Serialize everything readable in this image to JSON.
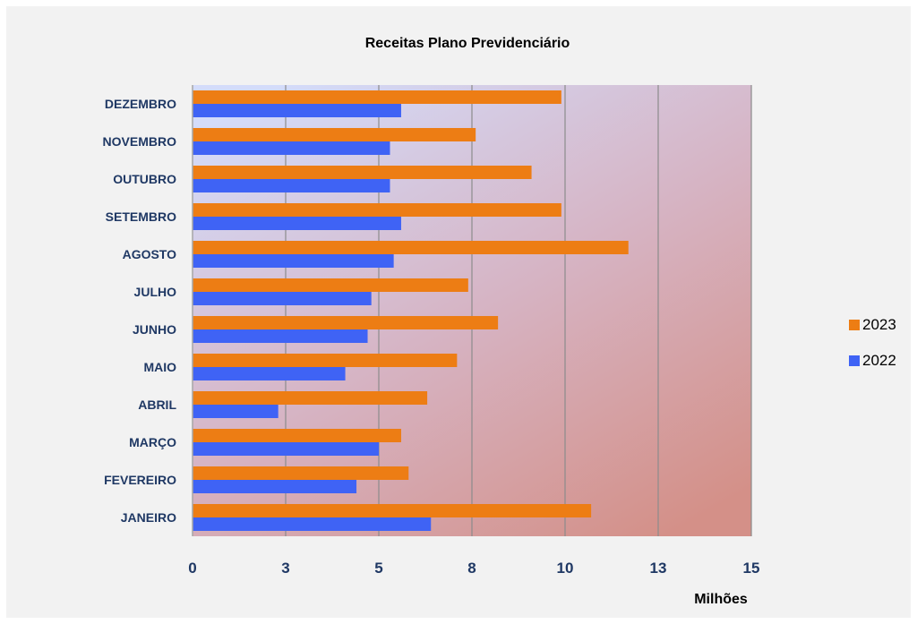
{
  "chart_data": {
    "type": "bar",
    "orientation": "horizontal",
    "title": "Receitas Plano Previdenciário",
    "xlabel": "Milhões",
    "ylabel": "",
    "categories": [
      "JANEIRO",
      "FEVEREIRO",
      "MARÇO",
      "ABRIL",
      "MAIO",
      "JUNHO",
      "JULHO",
      "AGOSTO",
      "SETEMBRO",
      "OUTUBRO",
      "NOVEMBRO",
      "DEZEMBRO"
    ],
    "x_tick_labels": [
      "0",
      "3",
      "5",
      "8",
      "10",
      "13",
      "15"
    ],
    "xlim": [
      0,
      15
    ],
    "grid": true,
    "legend_position": "right",
    "series": [
      {
        "name": "2022",
        "color": "#3f63f5",
        "values": [
          6.4,
          4.4,
          5.0,
          2.3,
          4.1,
          4.7,
          4.8,
          5.4,
          5.6,
          5.3,
          5.3,
          5.6
        ]
      },
      {
        "name": "2023",
        "color": "#ed7d14",
        "values": [
          10.7,
          5.8,
          5.6,
          6.3,
          7.1,
          8.2,
          7.4,
          11.7,
          9.9,
          9.1,
          7.6,
          9.9
        ]
      }
    ]
  }
}
